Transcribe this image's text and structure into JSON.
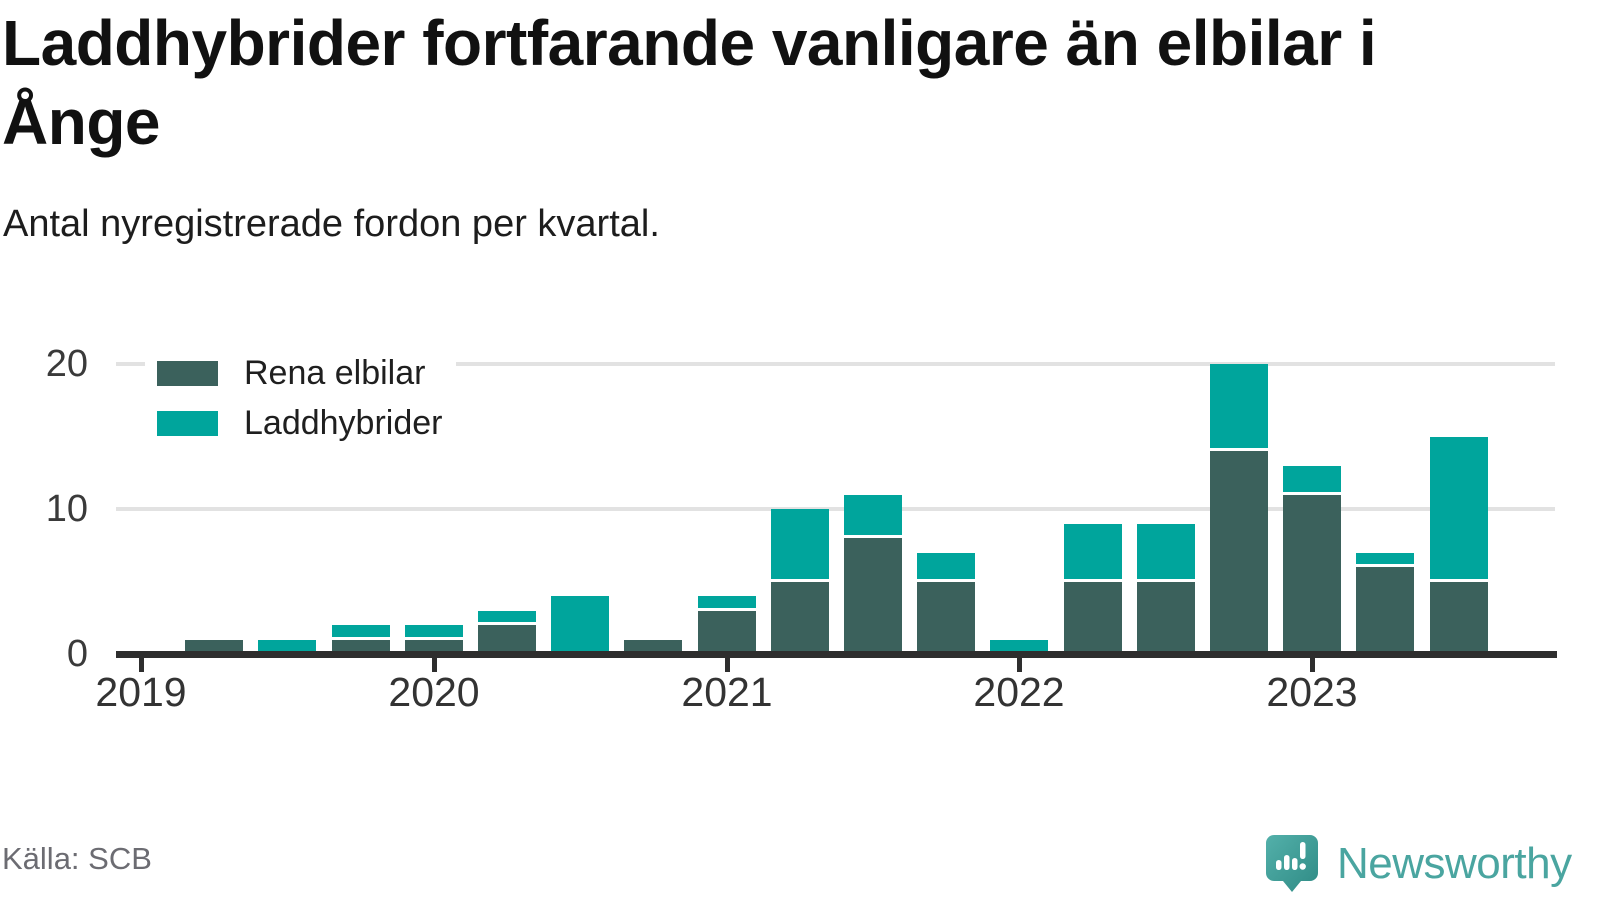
{
  "header": {
    "title": "Laddhybrider fortfarande vanligare än elbilar i Ånge",
    "subtitle": "Antal nyregistrerade fordon per kvartal."
  },
  "legend": {
    "items": [
      {
        "label": "Rena elbilar",
        "color": "#3b615c"
      },
      {
        "label": "Laddhybrider",
        "color": "#00a59c"
      }
    ]
  },
  "footer": {
    "source": "Källa: SCB",
    "brand": "Newsworthy",
    "brand_color": "#4aa5a0"
  },
  "chart_data": {
    "type": "bar",
    "stacked": true,
    "title": "Laddhybrider fortfarande vanligare än elbilar i Ånge",
    "subtitle": "Antal nyregistrerade fordon per kvartal.",
    "categories": [
      "2019 Q1",
      "2019 Q2",
      "2019 Q3",
      "2019 Q4",
      "2020 Q1",
      "2020 Q2",
      "2020 Q3",
      "2020 Q4",
      "2021 Q1",
      "2021 Q2",
      "2021 Q3",
      "2021 Q4",
      "2022 Q1",
      "2022 Q2",
      "2022 Q3",
      "2022 Q4",
      "2023 Q1",
      "2023 Q2",
      "2023 Q3"
    ],
    "series": [
      {
        "name": "Rena elbilar",
        "color": "#3b615c",
        "values": [
          0,
          1,
          0,
          1,
          1,
          2,
          0,
          1,
          3,
          5,
          8,
          5,
          0,
          5,
          5,
          14,
          11,
          6,
          5
        ]
      },
      {
        "name": "Laddhybrider",
        "color": "#00a59c",
        "values": [
          0,
          0,
          1,
          1,
          1,
          1,
          4,
          0,
          1,
          5,
          3,
          2,
          1,
          4,
          4,
          6,
          2,
          1,
          10
        ]
      }
    ],
    "x_tick_labels": [
      "2019",
      "2020",
      "2021",
      "2022",
      "2023"
    ],
    "y_ticks": [
      0,
      10,
      20
    ],
    "ylim": [
      0,
      20
    ],
    "grid": "horizontal",
    "legend_position": "top-left",
    "axis_color": "#2e2e2e",
    "grid_color": "#e2e2e2",
    "separator_color": "#ffffff"
  }
}
